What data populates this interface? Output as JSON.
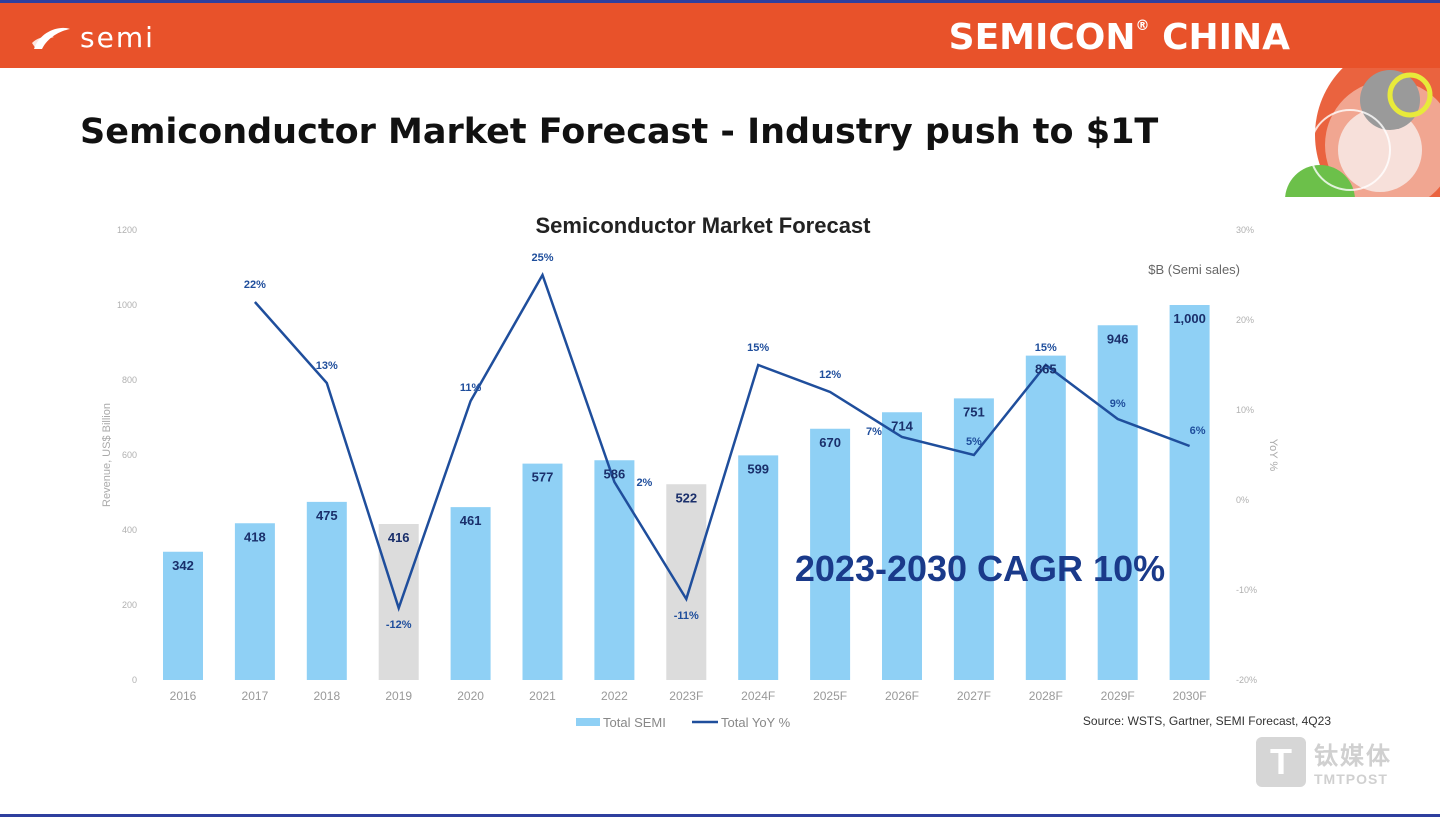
{
  "header": {
    "logo_text": "semi",
    "brand_main": "SEMICON",
    "brand_reg": "®",
    "brand_tail": " CHINA"
  },
  "slide": {
    "title": "Semiconductor Market Forecast - Industry push to $1T"
  },
  "watermark": {
    "icon_letter": "T",
    "cn": "钛媒体",
    "en": "TMTPOST"
  },
  "colors": {
    "header_orange": "#e8522a",
    "bar_blue": "#8fd0f5",
    "bar_gray": "#dcdcdc",
    "line_navy": "#1f4e9c",
    "label_navy": "#1a2f6b",
    "cagr_navy": "#1a3a8a"
  },
  "chart_data": {
    "type": "bar",
    "title": "Semiconductor Market Forecast",
    "units_note": "$B (Semi sales)",
    "ylabel": "Revenue, US$ Billion",
    "y2label": "YoY %",
    "ylim": [
      0,
      1200
    ],
    "yticks": [
      0,
      200,
      400,
      600,
      800,
      1000,
      1200
    ],
    "y2lim": [
      -20,
      30
    ],
    "y2ticks": [
      "-20%",
      "-10%",
      "0%",
      "10%",
      "20%",
      "30%"
    ],
    "y2tick_values": [
      -20,
      -10,
      0,
      10,
      20,
      30
    ],
    "categories": [
      "2016",
      "2017",
      "2018",
      "2019",
      "2020",
      "2021",
      "2022",
      "2023F",
      "2024F",
      "2025F",
      "2026F",
      "2027F",
      "2028F",
      "2029F",
      "2030F"
    ],
    "bar_colors": [
      "blue",
      "blue",
      "blue",
      "gray",
      "blue",
      "blue",
      "blue",
      "gray",
      "blue",
      "blue",
      "blue",
      "blue",
      "blue",
      "blue",
      "blue"
    ],
    "series": [
      {
        "name": "Total SEMI",
        "kind": "bar",
        "values": [
          342,
          418,
          475,
          416,
          461,
          577,
          586,
          522,
          599,
          670,
          714,
          751,
          865,
          946,
          1000
        ],
        "labels": [
          "342",
          "418",
          "475",
          "416",
          "461",
          "577",
          "586",
          "522",
          "599",
          "670",
          "714",
          "751",
          "865",
          "946",
          "1,000"
        ]
      },
      {
        "name": "Total YoY %",
        "kind": "line",
        "values": [
          null,
          22,
          13,
          -12,
          11,
          25,
          2,
          -11,
          15,
          12,
          7,
          5,
          15,
          9,
          6
        ],
        "labels": [
          "",
          "22%",
          "13%",
          "-12%",
          "11%",
          "25%",
          "2%",
          "-11%",
          "15%",
          "12%",
          "7%",
          "5%",
          "15%",
          "9%",
          "6%"
        ]
      }
    ],
    "annotation": "2023-2030 CAGR 10%",
    "source": "Source: WSTS, Gartner, SEMI Forecast, 4Q23",
    "legend_position": "bottom-center"
  }
}
